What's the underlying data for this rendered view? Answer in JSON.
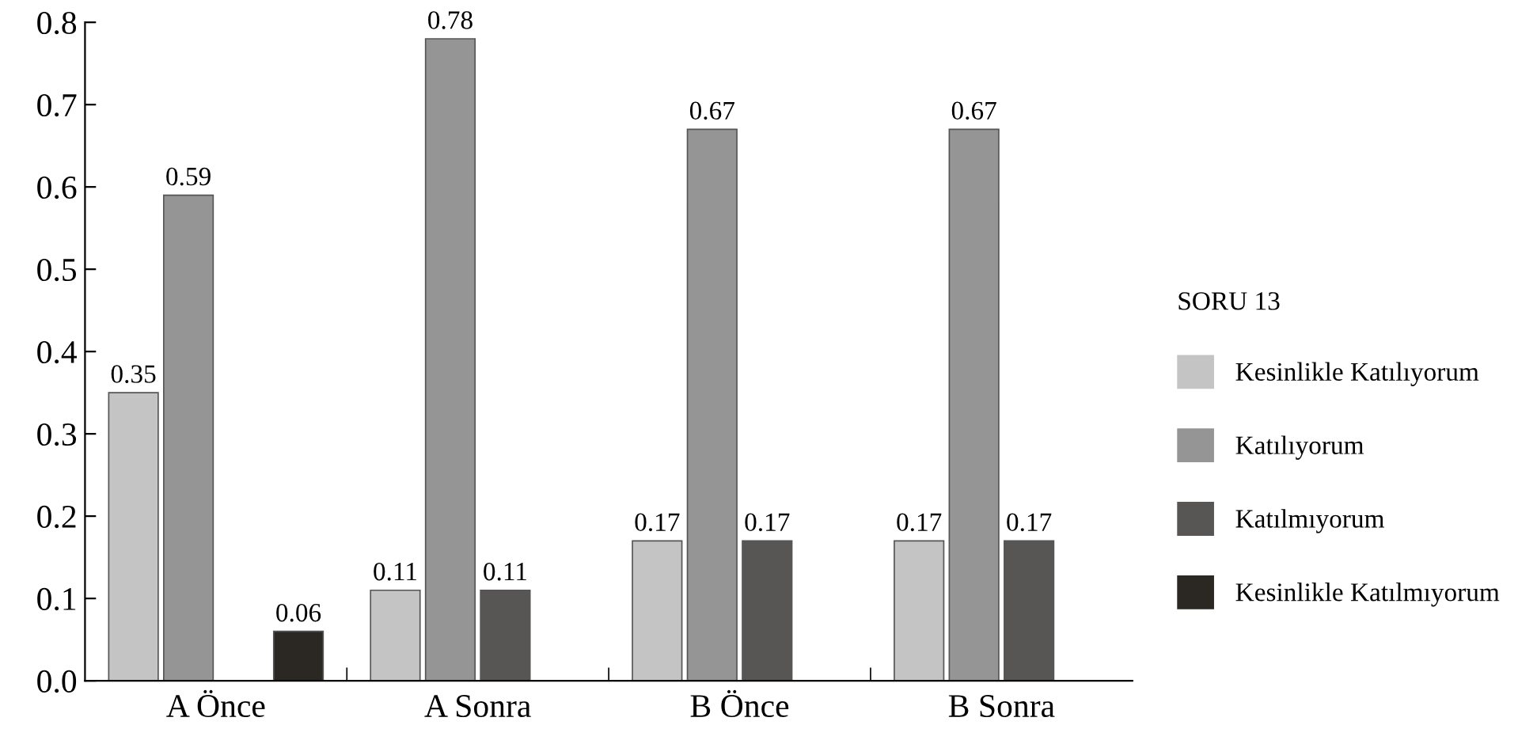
{
  "chart_data": {
    "type": "bar",
    "legend_title": "SORU 13",
    "categories": [
      "A Önce",
      "A Sonra",
      "B Önce",
      "B Sonra"
    ],
    "series": [
      {
        "name": "Kesinlikle Katılıyorum",
        "color": "#c4c4c4",
        "values": [
          0.35,
          0.11,
          0.17,
          0.17
        ]
      },
      {
        "name": "Katılıyorum",
        "color": "#959595",
        "values": [
          0.59,
          0.78,
          0.67,
          0.67
        ]
      },
      {
        "name": "Katılmıyorum",
        "color": "#585555",
        "values": [
          null,
          0.11,
          0.17,
          0.17
        ]
      },
      {
        "name": "Kesinlikle Katılmıyorum",
        "color": "#2b2723",
        "values": [
          0.06,
          null,
          null,
          null
        ]
      }
    ],
    "ylim": [
      0,
      0.8
    ],
    "yticks": [
      {
        "value": 0,
        "label": "0.0"
      },
      {
        "value": 0.1,
        "label": "0.1"
      },
      {
        "value": 0.2,
        "label": "0.2"
      },
      {
        "value": 0.3,
        "label": "0.3"
      },
      {
        "value": 0.4,
        "label": "0.4"
      },
      {
        "value": 0.5,
        "label": "0.5"
      },
      {
        "value": 0.6,
        "label": "0.6"
      },
      {
        "value": 0.7,
        "label": "0.7"
      },
      {
        "value": 0.8,
        "label": "0.8"
      }
    ],
    "data_labels": true,
    "grid": false,
    "legend": "right"
  }
}
